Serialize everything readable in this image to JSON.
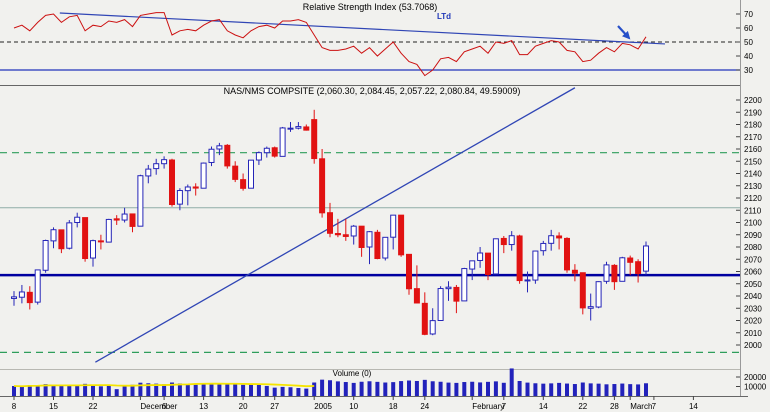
{
  "colors": {
    "background": "#f1f1ee",
    "trendline": "#3046b5",
    "arrow": "#2750c8",
    "candle_up_outline": "#2626b8",
    "candle_up_fill": "#ffffff",
    "candle_down": "#e11212",
    "volume_bar": "#2222bb",
    "axis_text": "#000000"
  },
  "chart_data": [
    {
      "id": "rsi",
      "type": "line",
      "title": "Relative Strength Index (53.7068)",
      "ylim": [
        20,
        76
      ],
      "y_ticks": [
        70,
        60,
        50,
        40,
        30
      ],
      "legend": "none",
      "grid": "off",
      "series": [
        {
          "name": "RSI",
          "color": "#cc1111",
          "values": [
            60,
            62,
            58,
            64,
            69,
            70,
            64,
            68,
            69,
            58,
            62,
            61,
            65,
            64,
            66,
            61,
            69,
            70,
            71,
            71,
            55,
            58,
            59,
            58,
            62,
            65,
            66,
            58,
            55,
            53,
            58,
            61,
            62,
            60,
            65,
            65,
            66,
            64,
            55,
            46,
            44,
            44,
            45,
            47,
            42,
            46,
            40,
            45,
            50,
            42,
            36,
            34,
            26,
            30,
            38,
            39,
            36,
            43,
            45,
            47,
            42,
            50,
            49,
            51,
            41,
            41,
            47,
            49,
            51,
            50,
            44,
            43,
            36,
            37,
            42,
            46,
            43,
            49,
            48,
            45,
            53.7
          ]
        }
      ],
      "levels": [
        {
          "value": 50,
          "style": "dashed",
          "color": "#222222",
          "width": 1
        },
        {
          "value": 30,
          "style": "solid",
          "color": "#2233bb",
          "width": 1.2
        }
      ],
      "trendline": {
        "label": "LTd",
        "i1": 5.8,
        "v1": 70.7,
        "i2": 82.4,
        "v2": 48.6
      },
      "annotations": [
        {
          "type": "arrow",
          "x1": 618,
          "y1": 26,
          "x2": 629,
          "y2": 38
        }
      ]
    },
    {
      "id": "price",
      "type": "candlestick",
      "title": "NAS/NMS COMPSITE (2,060.30, 2,084.45, 2,057.22, 2,080.84, 49.59009)",
      "ylim": [
        1981,
        2211
      ],
      "y_ticks": [
        2200,
        2190,
        2180,
        2170,
        2160,
        2150,
        2140,
        2130,
        2120,
        2110,
        2100,
        2090,
        2080,
        2070,
        2060,
        2050,
        2040,
        2030,
        2020,
        2010,
        2000
      ],
      "ohlc_format": [
        "open",
        "high",
        "low",
        "close"
      ],
      "ohlc": [
        [
          2038,
          2044,
          2032,
          2039.3
        ],
        [
          2039,
          2049,
          2034,
          2043.3
        ],
        [
          2043,
          2048,
          2029,
          2034.6
        ],
        [
          2035,
          2061,
          2033,
          2061.3
        ],
        [
          2061,
          2086,
          2059,
          2085.3
        ],
        [
          2085,
          2096,
          2079,
          2094.1
        ],
        [
          2094,
          2094,
          2075,
          2078.6
        ],
        [
          2079,
          2102,
          2078,
          2099.7
        ],
        [
          2100,
          2108,
          2096,
          2104.3
        ],
        [
          2104,
          2104,
          2068,
          2070.6
        ],
        [
          2071,
          2086,
          2064,
          2085.2
        ],
        [
          2085,
          2090,
          2078,
          2084.3
        ],
        [
          2084,
          2103,
          2084,
          2102.5
        ],
        [
          2103,
          2106,
          2098,
          2102.0
        ],
        [
          2102,
          2112,
          2100,
          2106.9
        ],
        [
          2107,
          2107,
          2092,
          2096.8
        ],
        [
          2097,
          2139,
          2097,
          2138.2
        ],
        [
          2138,
          2147,
          2132,
          2143.6
        ],
        [
          2144,
          2152,
          2139,
          2148.0
        ],
        [
          2148,
          2154,
          2144,
          2151.3
        ],
        [
          2151,
          2152,
          2113,
          2114.7
        ],
        [
          2115,
          2128,
          2110,
          2126.1
        ],
        [
          2126,
          2131,
          2114,
          2129.0
        ],
        [
          2129,
          2132,
          2122,
          2128.1
        ],
        [
          2128,
          2149,
          2128,
          2148.5
        ],
        [
          2149,
          2162,
          2146,
          2159.8
        ],
        [
          2160,
          2165,
          2155,
          2162.6
        ],
        [
          2163,
          2164,
          2144,
          2146.2
        ],
        [
          2146,
          2150,
          2133,
          2135.2
        ],
        [
          2135,
          2140,
          2126,
          2127.9
        ],
        [
          2128,
          2151,
          2128,
          2150.9
        ],
        [
          2151,
          2158,
          2147,
          2157.0
        ],
        [
          2157,
          2162,
          2153,
          2160.6
        ],
        [
          2161,
          2162,
          2153,
          2154.2
        ],
        [
          2154,
          2178,
          2154,
          2177.2
        ],
        [
          2177,
          2182,
          2174,
          2177.0
        ],
        [
          2177,
          2182,
          2176,
          2178.3
        ],
        [
          2178,
          2180,
          2175,
          2175.4
        ],
        [
          2184,
          2192,
          2148,
          2152.2
        ],
        [
          2152,
          2160,
          2104,
          2107.9
        ],
        [
          2108,
          2116,
          2088,
          2091.2
        ],
        [
          2091,
          2103,
          2088,
          2090.0
        ],
        [
          2090,
          2103,
          2085,
          2088.6
        ],
        [
          2089,
          2098,
          2082,
          2097.0
        ],
        [
          2097,
          2097,
          2072,
          2079.6
        ],
        [
          2080,
          2093,
          2066,
          2092.5
        ],
        [
          2092,
          2094,
          2070,
          2070.6
        ],
        [
          2071,
          2088,
          2069,
          2087.9
        ],
        [
          2088,
          2106,
          2078,
          2106.0
        ],
        [
          2106,
          2106,
          2072,
          2073.6
        ],
        [
          2074,
          2074,
          2041,
          2045.9
        ],
        [
          2046,
          2065,
          2034,
          2034.3
        ],
        [
          2034,
          2043,
          2008,
          2008.7
        ],
        [
          2009,
          2030,
          2008,
          2019.9
        ],
        [
          2020,
          2048,
          2020,
          2046.1
        ],
        [
          2046,
          2052,
          2036,
          2047.2
        ],
        [
          2047,
          2049,
          2026,
          2035.8
        ],
        [
          2036,
          2063,
          2036,
          2062.4
        ],
        [
          2062,
          2069,
          2053,
          2068.7
        ],
        [
          2069,
          2080,
          2063,
          2075.1
        ],
        [
          2075,
          2075,
          2053,
          2057.6
        ],
        [
          2058,
          2087,
          2058,
          2086.7
        ],
        [
          2087,
          2089,
          2075,
          2082.0
        ],
        [
          2082,
          2093,
          2077,
          2089.2
        ],
        [
          2089,
          2090,
          2050,
          2052.6
        ],
        [
          2053,
          2060,
          2043,
          2053.1
        ],
        [
          2053,
          2077,
          2050,
          2076.7
        ],
        [
          2077,
          2085,
          2073,
          2082.9
        ],
        [
          2083,
          2094,
          2077,
          2089.2
        ],
        [
          2089,
          2092,
          2078,
          2087.4
        ],
        [
          2087,
          2088,
          2059,
          2061.3
        ],
        [
          2061,
          2066,
          2052,
          2058.6
        ],
        [
          2059,
          2059,
          2025,
          2030.3
        ],
        [
          2030,
          2042,
          2020,
          2031.3
        ],
        [
          2031,
          2052,
          2030,
          2051.7
        ],
        [
          2052,
          2068,
          2050,
          2065.4
        ],
        [
          2065,
          2066,
          2045,
          2051.7
        ],
        [
          2052,
          2072,
          2052,
          2071.2
        ],
        [
          2071,
          2073,
          2057,
          2067.5
        ],
        [
          2068,
          2070,
          2051,
          2058.4
        ],
        [
          2060.3,
          2084.45,
          2057.22,
          2080.84
        ]
      ],
      "levels": [
        {
          "name": "green-dashed-upper",
          "value": 2157,
          "style": "dashed",
          "color": "#2e9e5b",
          "width": 1.2
        },
        {
          "name": "green-dashed-lower",
          "value": 1994,
          "style": "dashed",
          "color": "#2e9e5b",
          "width": 1.2
        },
        {
          "name": "resistance-line",
          "value": 2112,
          "style": "solid",
          "color": "#8fada7",
          "width": 1
        },
        {
          "name": "support-line",
          "value": 2057,
          "style": "solid",
          "color": "#0000a0",
          "width": 2.5
        }
      ],
      "trendline": {
        "i1": 10.3,
        "p1": 1986,
        "i2": 71,
        "p2": 2210
      }
    },
    {
      "id": "volume",
      "type": "bar",
      "title": "Volume (0)",
      "ylim": [
        0,
        30000
      ],
      "y_ticks": [
        20000,
        10000
      ],
      "values": [
        10500,
        10000,
        11500,
        11000,
        12500,
        11800,
        10800,
        11400,
        11100,
        12800,
        11600,
        10200,
        10900,
        7200,
        10600,
        11800,
        14000,
        13400,
        13000,
        12400,
        14200,
        13200,
        12600,
        11900,
        12500,
        13100,
        13400,
        13000,
        12300,
        11800,
        12100,
        12600,
        10600,
        8800,
        9600,
        9200,
        8400,
        7800,
        14200,
        17200,
        16600,
        15400,
        14700,
        13800,
        15000,
        15500,
        14900,
        14200,
        14600,
        15700,
        16300,
        15800,
        17000,
        15500,
        15000,
        14100,
        13800,
        14700,
        15000,
        14300,
        14900,
        15400,
        13900,
        29000,
        15800,
        14100,
        13400,
        13000,
        13300,
        13800,
        13100,
        12600,
        14200,
        13300,
        13000,
        12300,
        12600,
        13100,
        12500,
        12200,
        13400
      ],
      "ma": {
        "window": 10,
        "end_index": 38,
        "color": "#f5e400"
      }
    }
  ],
  "x_axis": {
    "labels": [
      {
        "text": "8",
        "i": 0
      },
      {
        "text": "15",
        "i": 5
      },
      {
        "text": "22",
        "i": 10
      },
      {
        "text": "December",
        "i": 16,
        "anchor": "start"
      },
      {
        "text": "6",
        "i": 19
      },
      {
        "text": "13",
        "i": 24
      },
      {
        "text": "20",
        "i": 29
      },
      {
        "text": "27",
        "i": 33
      },
      {
        "text": "2005",
        "i": 38,
        "anchor": "start"
      },
      {
        "text": "10",
        "i": 43
      },
      {
        "text": "18",
        "i": 48
      },
      {
        "text": "24",
        "i": 52
      },
      {
        "text": "February",
        "i": 58,
        "anchor": "start"
      },
      {
        "text": "7",
        "i": 62
      },
      {
        "text": "14",
        "i": 67
      },
      {
        "text": "22",
        "i": 72
      },
      {
        "text": "28",
        "i": 76
      },
      {
        "text": "March",
        "i": 78,
        "anchor": "start"
      },
      {
        "text": "7",
        "i": 81
      },
      {
        "text": "14",
        "i": 86
      }
    ]
  }
}
